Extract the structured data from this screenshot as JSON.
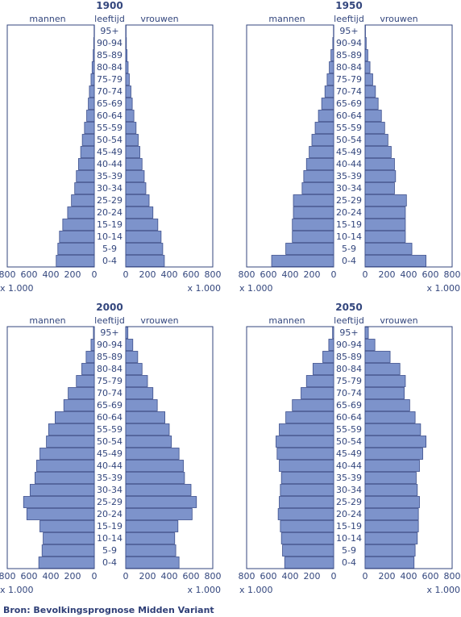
{
  "colors": {
    "bar": "#7d93cb",
    "stroke": "#3c4f8c",
    "text": "#33467d",
    "frame": "#33467d"
  },
  "labels": {
    "men": "mannen",
    "age": "leeftijd",
    "women": "vrouwen",
    "multiplier": "x 1.000",
    "source": "Bron: Bevolkingsprognose Midden Variant"
  },
  "age_groups": [
    "95+",
    "90-94",
    "85-89",
    "80-84",
    "75-79",
    "70-74",
    "65-69",
    "60-64",
    "55-59",
    "50-54",
    "45-49",
    "40-44",
    "35-39",
    "30-34",
    "25-29",
    "20-24",
    "15-19",
    "10-14",
    "5-9",
    "0-4"
  ],
  "axis_ticks": [
    "800",
    "600",
    "400",
    "200",
    "0",
    "0",
    "200",
    "400",
    "600",
    "800"
  ],
  "chart_data": [
    {
      "type": "bar",
      "title": "1900",
      "xlim": [
        0,
        800
      ],
      "categories": [
        "95+",
        "90-94",
        "85-89",
        "80-84",
        "75-79",
        "70-74",
        "65-69",
        "60-64",
        "55-59",
        "50-54",
        "45-49",
        "40-44",
        "35-39",
        "30-34",
        "25-29",
        "20-24",
        "15-19",
        "10-14",
        "5-9",
        "0-4"
      ],
      "series": [
        {
          "name": "mannen",
          "values": [
            2,
            5,
            10,
            20,
            30,
            45,
            55,
            70,
            90,
            110,
            125,
            145,
            165,
            180,
            210,
            245,
            290,
            320,
            335,
            350
          ]
        },
        {
          "name": "vrouwen",
          "values": [
            2,
            6,
            12,
            22,
            33,
            48,
            60,
            75,
            95,
            115,
            130,
            150,
            170,
            185,
            215,
            250,
            295,
            325,
            340,
            355
          ]
        }
      ]
    },
    {
      "type": "bar",
      "title": "1950",
      "xlim": [
        0,
        800
      ],
      "categories": [
        "95+",
        "90-94",
        "85-89",
        "80-84",
        "75-79",
        "70-74",
        "65-69",
        "60-64",
        "55-59",
        "50-54",
        "45-49",
        "40-44",
        "35-39",
        "30-34",
        "25-29",
        "20-24",
        "15-19",
        "10-14",
        "5-9",
        "0-4"
      ],
      "series": [
        {
          "name": "mannen",
          "values": [
            2,
            8,
            25,
            40,
            60,
            80,
            110,
            140,
            170,
            200,
            225,
            250,
            275,
            290,
            370,
            370,
            380,
            380,
            440,
            570
          ]
        },
        {
          "name": "vrouwen",
          "values": [
            2,
            10,
            25,
            45,
            70,
            95,
            120,
            150,
            180,
            210,
            240,
            270,
            280,
            270,
            380,
            370,
            370,
            370,
            430,
            560
          ]
        }
      ]
    },
    {
      "type": "bar",
      "title": "2000",
      "xlim": [
        0,
        800
      ],
      "categories": [
        "95+",
        "90-94",
        "85-89",
        "80-84",
        "75-79",
        "70-74",
        "65-69",
        "60-64",
        "55-59",
        "50-54",
        "45-49",
        "40-44",
        "35-39",
        "30-34",
        "25-29",
        "20-24",
        "15-19",
        "10-14",
        "5-9",
        "0-4"
      ],
      "series": [
        {
          "name": "mannen",
          "values": [
            8,
            30,
            75,
            115,
            165,
            240,
            280,
            360,
            420,
            440,
            500,
            530,
            545,
            590,
            650,
            620,
            500,
            470,
            480,
            510
          ]
        },
        {
          "name": "vrouwen",
          "values": [
            20,
            65,
            110,
            150,
            200,
            250,
            290,
            360,
            400,
            420,
            490,
            530,
            540,
            600,
            650,
            610,
            480,
            450,
            460,
            490
          ]
        }
      ]
    },
    {
      "type": "bar",
      "title": "2050",
      "xlim": [
        0,
        800
      ],
      "categories": [
        "95+",
        "90-94",
        "85-89",
        "80-84",
        "75-79",
        "70-74",
        "65-69",
        "60-64",
        "55-59",
        "50-54",
        "45-49",
        "40-44",
        "35-39",
        "30-34",
        "25-29",
        "20-24",
        "15-19",
        "10-14",
        "5-9",
        "0-4"
      ],
      "series": [
        {
          "name": "mannen",
          "values": [
            10,
            45,
            100,
            190,
            250,
            300,
            380,
            440,
            500,
            530,
            520,
            500,
            480,
            490,
            500,
            510,
            490,
            480,
            470,
            450
          ]
        },
        {
          "name": "vrouwen",
          "values": [
            30,
            90,
            230,
            320,
            370,
            360,
            410,
            460,
            510,
            560,
            530,
            500,
            470,
            480,
            500,
            490,
            490,
            480,
            460,
            450
          ]
        }
      ]
    }
  ]
}
